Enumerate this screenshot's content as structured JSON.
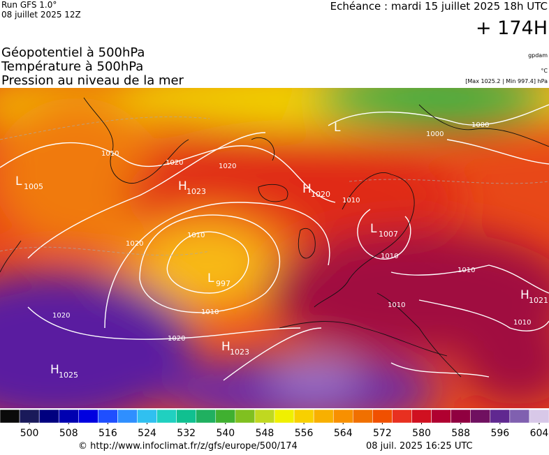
{
  "header": {
    "run": "Run GFS 1.0°",
    "run_date": "08 juillet 2025 12Z",
    "forecast": "Echéance : mardi 15 juillet 2025 18h UTC",
    "lead": "+ 174H"
  },
  "fields": [
    "Géopotentiel à 500hPa",
    "Température à 500hPa",
    "Pression au niveau de la mer"
  ],
  "units": {
    "geopotential": "gpdam",
    "temperature": "°C",
    "pressure": "[Max 1025.2 | Min 997.4] hPa"
  },
  "centers": [
    {
      "letter": "L",
      "value": 1005
    },
    {
      "letter": "H",
      "value": 1023
    },
    {
      "letter": "H",
      "value": 1020
    },
    {
      "letter": "L",
      "value": 1007
    },
    {
      "letter": "L",
      "value": 997
    },
    {
      "letter": "H",
      "value": 1021
    },
    {
      "letter": "H",
      "value": 1023
    },
    {
      "letter": "H",
      "value": 1025
    },
    {
      "letter": "L",
      "value": null
    }
  ],
  "isobar_labels": [
    1010,
    1020,
    1020,
    1010,
    1020,
    1010,
    1020,
    1020,
    1010,
    1010,
    1010,
    1000,
    1010,
    1010,
    1000
  ],
  "colorbar": {
    "range": [
      494,
      606
    ],
    "ticks": [
      500,
      508,
      516,
      524,
      532,
      540,
      548,
      556,
      564,
      572,
      580,
      588,
      596,
      604
    ],
    "colors": [
      "#0a0a0a",
      "#1a1a5a",
      "#00007f",
      "#0000b0",
      "#0000e0",
      "#1f4fff",
      "#2f8fff",
      "#30c0f0",
      "#20d0c0",
      "#10c090",
      "#20b060",
      "#40b030",
      "#80c020",
      "#c0d820",
      "#f0f000",
      "#f8d000",
      "#f8b000",
      "#f89000",
      "#f07000",
      "#f05000",
      "#e83020",
      "#d01020",
      "#b00030",
      "#900040",
      "#701060",
      "#602890",
      "#8060b0",
      "#d8c8e8"
    ]
  },
  "footer": {
    "source": "© http://www.infoclimat.fr/z/gfs/europe/500/174",
    "generated": "08 juil. 2025 16:25 UTC"
  }
}
